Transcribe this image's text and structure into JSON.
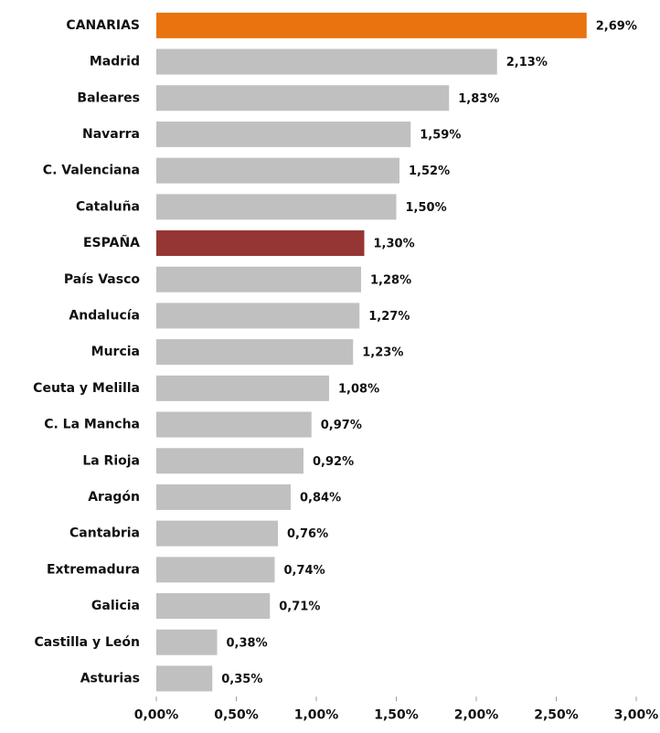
{
  "chart_data": {
    "type": "barh",
    "categories": [
      "CANARIAS",
      "Madrid",
      "Baleares",
      "Navarra",
      "C. Valenciana",
      "Cataluña",
      "ESPAÑA",
      "País Vasco",
      "Andalucía",
      "Murcia",
      "Ceuta y Melilla",
      "C. La Mancha",
      "La Rioja",
      "Aragón",
      "Cantabria",
      "Extremadura",
      "Galicia",
      "Castilla y León",
      "Asturias"
    ],
    "values": [
      2.69,
      2.13,
      1.83,
      1.59,
      1.52,
      1.5,
      1.3,
      1.28,
      1.27,
      1.23,
      1.08,
      0.97,
      0.92,
      0.84,
      0.76,
      0.74,
      0.71,
      0.38,
      0.35
    ],
    "value_labels": [
      "2,69%",
      "2,13%",
      "1,83%",
      "1,59%",
      "1,52%",
      "1,50%",
      "1,30%",
      "1,28%",
      "1,27%",
      "1,23%",
      "1,08%",
      "0,97%",
      "0,92%",
      "0,84%",
      "0,76%",
      "0,74%",
      "0,71%",
      "0,38%",
      "0,35%"
    ],
    "colors": [
      "#e8730f",
      "#c0c0c0",
      "#c0c0c0",
      "#c0c0c0",
      "#c0c0c0",
      "#c0c0c0",
      "#963634",
      "#c0c0c0",
      "#c0c0c0",
      "#c0c0c0",
      "#c0c0c0",
      "#c0c0c0",
      "#c0c0c0",
      "#c0c0c0",
      "#c0c0c0",
      "#c0c0c0",
      "#c0c0c0",
      "#c0c0c0",
      "#c0c0c0"
    ],
    "xlim": [
      0,
      3
    ],
    "xticks": [
      {
        "value": 0,
        "label": "0,00%"
      },
      {
        "value": 0.5,
        "label": "0,50%"
      },
      {
        "value": 1,
        "label": "1,00%"
      },
      {
        "value": 1.5,
        "label": "1,50%"
      },
      {
        "value": 2,
        "label": "2,00%"
      },
      {
        "value": 2.5,
        "label": "2,50%"
      },
      {
        "value": 3,
        "label": "3,00%"
      }
    ],
    "grid": false
  }
}
